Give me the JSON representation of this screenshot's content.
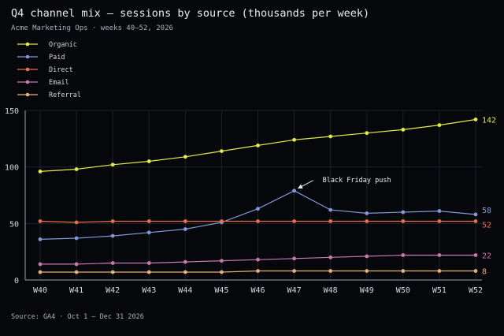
{
  "chart_data": {
    "type": "line",
    "title": "Q4 channel mix — sessions by source (thousands per week)",
    "subtitle": "Acme Marketing Ops · weeks 40–52, 2026",
    "source": "Source: GA4 · Oct 1 – Dec 31 2026",
    "xlabel": "",
    "ylabel": "",
    "categories": [
      "W40",
      "W41",
      "W42",
      "W43",
      "W44",
      "W45",
      "W46",
      "W47",
      "W48",
      "W49",
      "W50",
      "W51",
      "W52"
    ],
    "ylim": [
      0,
      150
    ],
    "yticks": [
      0,
      50,
      100,
      150
    ],
    "grid": true,
    "legend_position": "top-left",
    "series": [
      {
        "name": "Organic",
        "color": "#e3ea4a",
        "values": [
          96,
          98,
          102,
          105,
          109,
          114,
          119,
          124,
          127,
          130,
          133,
          137,
          142
        ],
        "end_label": "142"
      },
      {
        "name": "Paid",
        "color": "#7f9ad6",
        "values": [
          36,
          37,
          39,
          42,
          45,
          51,
          63,
          79,
          62,
          59,
          60,
          61,
          58
        ],
        "end_label": "58"
      },
      {
        "name": "Direct",
        "color": "#e8704e",
        "values": [
          52,
          51,
          52,
          52,
          52,
          52,
          52,
          52,
          52,
          52,
          52,
          52,
          52
        ],
        "end_label": "52"
      },
      {
        "name": "Email",
        "color": "#c879ad",
        "values": [
          14,
          14,
          15,
          15,
          16,
          17,
          18,
          19,
          20,
          21,
          22,
          22,
          22
        ],
        "end_label": "22"
      },
      {
        "name": "Referral",
        "color": "#e3b27a",
        "values": [
          7,
          7,
          7,
          7,
          7,
          7,
          8,
          8,
          8,
          8,
          8,
          8,
          8
        ],
        "end_label": "8"
      }
    ],
    "annotations": [
      {
        "text": "Black Friday push",
        "x": "W47",
        "series": "Paid",
        "y": 79
      }
    ]
  },
  "colors": {
    "background": "#05070b",
    "title": "#e9edf3",
    "subtitle": "#aab1bd",
    "axis_text": "#d4d8de",
    "grid": "#1d222b",
    "axis_line": "#9aa1ab"
  }
}
